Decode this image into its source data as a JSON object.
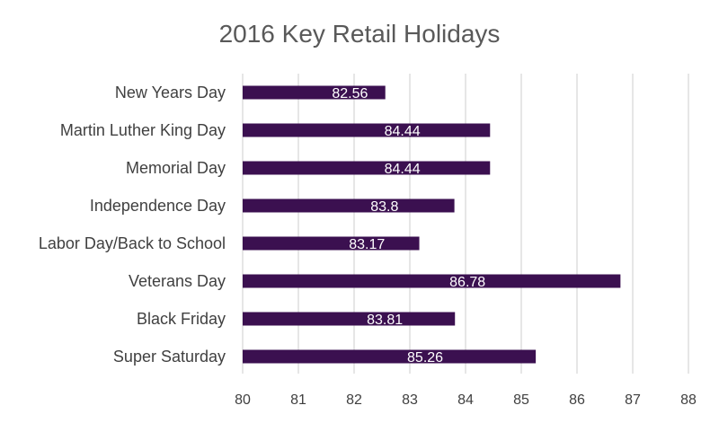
{
  "chart_data": {
    "type": "bar",
    "orientation": "horizontal",
    "title": "2016 Key Retail Holidays",
    "xlabel": "",
    "ylabel": "",
    "categories": [
      "New Years Day",
      "Martin Luther King Day",
      "Memorial Day",
      "Independence Day",
      "Labor Day/Back to School",
      "Veterans Day",
      "Black Friday",
      "Super Saturday"
    ],
    "values": [
      82.56,
      84.44,
      84.44,
      83.8,
      83.17,
      86.78,
      83.81,
      85.26
    ],
    "data_labels": [
      "82.56",
      "84.44",
      "84.44",
      "83.8",
      "83.17",
      "86.78",
      "83.81",
      "85.26"
    ],
    "xlim": [
      80,
      88
    ],
    "ticks": [
      80,
      81,
      82,
      83,
      84,
      85,
      86,
      87,
      88
    ],
    "grid": true,
    "legend": "none",
    "bar_color": "#3b1050"
  }
}
